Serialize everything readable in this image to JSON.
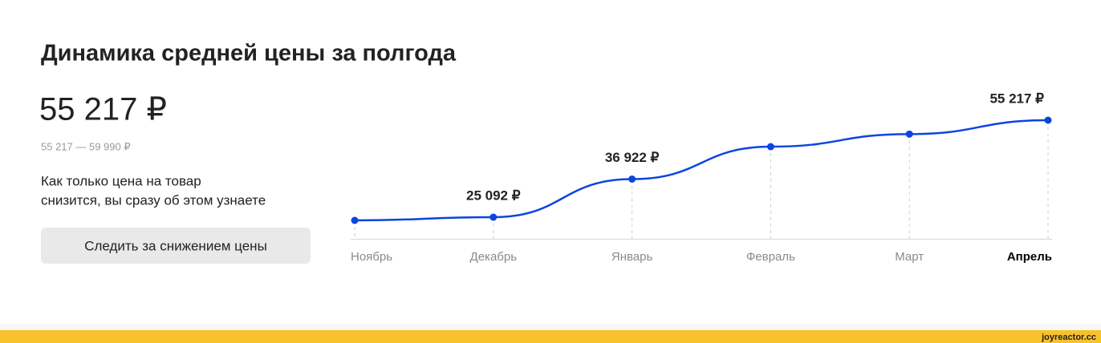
{
  "header": {
    "title": "Динамика средней цены за полгода",
    "price": "55 217 ₽",
    "range": "55 217 — 59 990 ₽",
    "note": [
      "Как только цена на товар",
      "снизится, вы сразу об этом узнаете"
    ],
    "button": "Следить за снижением цены"
  },
  "chart_data": {
    "type": "line",
    "categories": [
      "Ноябрь",
      "Декабрь",
      "Январь",
      "Февраль",
      "Март",
      "Апрель"
    ],
    "values": [
      24100,
      25092,
      36922,
      47000,
      50900,
      55217
    ],
    "value_labels": [
      null,
      "25 092 ₽",
      "36 922 ₽",
      null,
      null,
      "55 217 ₽"
    ],
    "color": "#0b45e0"
  },
  "footer": {
    "watermark": "joyreactor.cc"
  }
}
